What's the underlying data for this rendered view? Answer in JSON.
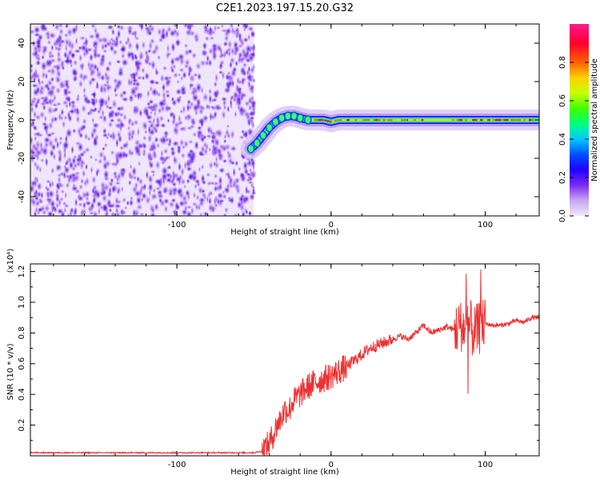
{
  "page": {
    "title": "C2E1.2023.197.15.20.G32"
  },
  "chart_data": [
    {
      "type": "heatmap",
      "title": "C2E1.2023.197.15.20.G32",
      "xlabel": "Height of straight line (km)",
      "ylabel": "Frequency (Hz)",
      "xlim": [
        -195,
        135
      ],
      "ylim": [
        -50,
        50
      ],
      "xticks": [
        -100,
        0,
        100
      ],
      "yticks": [
        -40,
        -20,
        0,
        20,
        40
      ],
      "grid": false,
      "colorbar": {
        "label": "Normalized spectral amplitude",
        "range": [
          0,
          1
        ],
        "ticks": [
          0.0,
          0.2,
          0.4,
          0.6,
          0.8
        ],
        "colors": [
          "#f0e8fa",
          "#c9a6f0",
          "#7a2cf0",
          "#2400ff",
          "#0050ff",
          "#00c8ff",
          "#00ff80",
          "#40ff00",
          "#c8ff00",
          "#ffd000",
          "#ff6000",
          "#ff0030",
          "#ff1a8c"
        ]
      },
      "noise_region": {
        "x_range": [
          -195,
          -50
        ],
        "freq_range": [
          -50,
          50
        ],
        "amplitude": "0.0-0.3"
      },
      "signal_track": [
        {
          "x": -52,
          "freq": -15
        },
        {
          "x": -48,
          "freq": -12
        },
        {
          "x": -44,
          "freq": -8
        },
        {
          "x": -40,
          "freq": -4
        },
        {
          "x": -36,
          "freq": -1
        },
        {
          "x": -32,
          "freq": 1
        },
        {
          "x": -28,
          "freq": 2
        },
        {
          "x": -24,
          "freq": 2
        },
        {
          "x": -20,
          "freq": 1
        },
        {
          "x": -15,
          "freq": 0
        },
        {
          "x": -10,
          "freq": 0
        },
        {
          "x": -5,
          "freq": 0
        },
        {
          "x": 0,
          "freq": -1
        },
        {
          "x": 5,
          "freq": 0
        },
        {
          "x": 10,
          "freq": 0
        },
        {
          "x": 20,
          "freq": 0
        },
        {
          "x": 40,
          "freq": 0
        },
        {
          "x": 60,
          "freq": 0
        },
        {
          "x": 80,
          "freq": 0
        },
        {
          "x": 100,
          "freq": 0
        },
        {
          "x": 120,
          "freq": 0
        },
        {
          "x": 135,
          "freq": 0
        }
      ]
    },
    {
      "type": "line",
      "xlabel": "Height of straight line (km)",
      "ylabel": "SNR (10 * v/v)",
      "y_multiplier": "(x10⁴)",
      "xlim": [
        -195,
        135
      ],
      "ylim": [
        0,
        1.25
      ],
      "xticks": [
        -100,
        0,
        100
      ],
      "yticks": [
        0.2,
        0.4,
        0.6,
        0.8,
        1.0,
        1.2
      ],
      "grid": false,
      "series": [
        {
          "color": "#ee3030",
          "x": [
            -195,
            -180,
            -160,
            -140,
            -120,
            -100,
            -80,
            -60,
            -50,
            -45,
            -40,
            -37,
            -35,
            -32,
            -30,
            -27,
            -25,
            -20,
            -15,
            -10,
            -5,
            0,
            5,
            10,
            15,
            20,
            25,
            30,
            35,
            40,
            45,
            50,
            55,
            60,
            65,
            70,
            75,
            80,
            85,
            88,
            90,
            92,
            95,
            98,
            100,
            105,
            110,
            115,
            120,
            125,
            130,
            135
          ],
          "y": [
            0.02,
            0.02,
            0.02,
            0.02,
            0.02,
            0.02,
            0.02,
            0.02,
            0.02,
            0.03,
            0.08,
            0.15,
            0.2,
            0.25,
            0.3,
            0.3,
            0.35,
            0.4,
            0.45,
            0.48,
            0.5,
            0.52,
            0.55,
            0.58,
            0.62,
            0.66,
            0.7,
            0.72,
            0.74,
            0.76,
            0.78,
            0.76,
            0.8,
            0.85,
            0.8,
            0.82,
            0.84,
            0.82,
            0.85,
            0.8,
            0.86,
            0.8,
            0.82,
            0.84,
            0.86,
            0.85,
            0.85,
            0.86,
            0.88,
            0.87,
            0.9,
            0.9
          ]
        }
      ]
    }
  ]
}
